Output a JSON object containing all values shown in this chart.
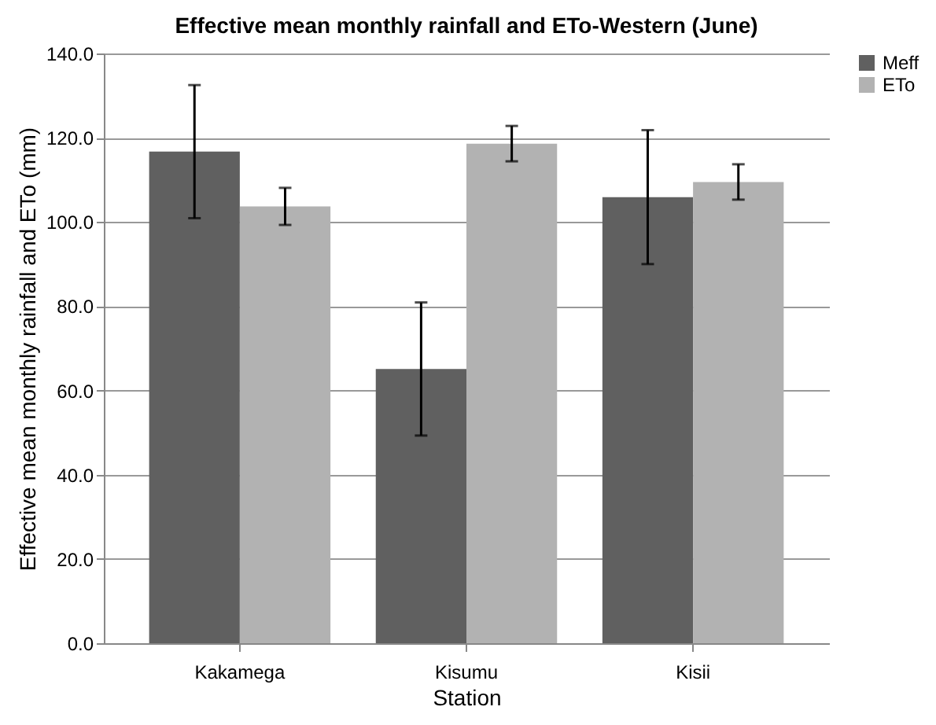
{
  "chart_data": {
    "type": "bar",
    "title": "Effective mean monthly rainfall and ETo-Western (June)",
    "xlabel": "Station",
    "ylabel": "Effective mean monthly rainfall and ETo (mm)",
    "categories": [
      "Kakamega",
      "Kisumu",
      "Kisii"
    ],
    "series": [
      {
        "name": "Meff",
        "color": "#606060",
        "values": [
          116.7,
          65.1,
          105.9
        ],
        "errors": [
          15.8,
          15.8,
          15.9
        ]
      },
      {
        "name": "ETo",
        "color": "#b2b2b2",
        "values": [
          103.7,
          118.6,
          109.5
        ],
        "errors": [
          4.4,
          4.2,
          4.2
        ]
      }
    ],
    "ylim": [
      0,
      140
    ],
    "yticks": [
      {
        "value": 0,
        "label": "0.0"
      },
      {
        "value": 20,
        "label": "20.0"
      },
      {
        "value": 40,
        "label": "40.0"
      },
      {
        "value": 60,
        "label": "60.0"
      },
      {
        "value": 80,
        "label": "80.0"
      },
      {
        "value": 100,
        "label": "100.0"
      },
      {
        "value": 120,
        "label": "120.0"
      },
      {
        "value": 140,
        "label": "140.0"
      }
    ],
    "grid": "y",
    "legend": "right"
  }
}
